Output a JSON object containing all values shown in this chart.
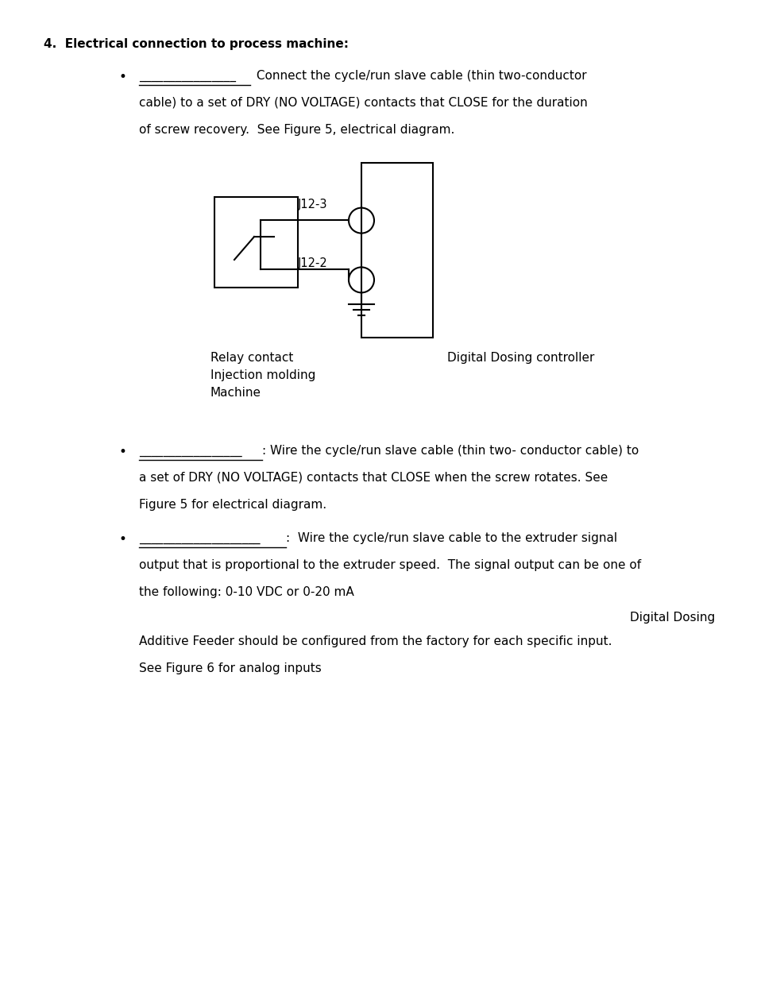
{
  "bg_color": "#ffffff",
  "text_color": "#000000",
  "page_width": 9.54,
  "page_height": 12.35,
  "font_size": 11.0,
  "section_text": "4.  Electrical connection to process machine:",
  "b1_underline": "________________",
  "b1_rest1": " Connect the cycle/run slave cable (thin two-conductor",
  "b1_line2": "cable) to a set of DRY (NO VOLTAGE) contacts that CLOSE for the duration",
  "b1_line3": "of screw recovery.  See Figure 5, electrical diagram.",
  "j12_3": "J12-3",
  "j12_2": "J12-2",
  "relay_label1": "Relay contact",
  "relay_label2": "Injection molding",
  "relay_label3": "Machine",
  "ctrl_label": "Digital Dosing controller",
  "b2_underline": "_________________",
  "b2_colon": ":",
  "b2_rest1": " Wire the cycle/run slave cable (thin two- conductor cable) to",
  "b2_line2": "a set of DRY (NO VOLTAGE) contacts that CLOSE when the screw rotates. See",
  "b2_line3": "Figure 5 for electrical diagram.",
  "b3_underline": "____________________",
  "b3_colon": ":",
  "b3_rest1": "  Wire the cycle/run slave cable to the extruder signal",
  "b3_line2": "output that is proportional to the extruder speed.  The signal output can be one of",
  "b3_line3": "the following: 0-10 VDC or 0-20 mA",
  "digital_dosing": "Digital Dosing",
  "bottom1": "Additive Feeder should be configured from the factory for each specific input.",
  "bottom2": "See Figure 6 for analog inputs"
}
